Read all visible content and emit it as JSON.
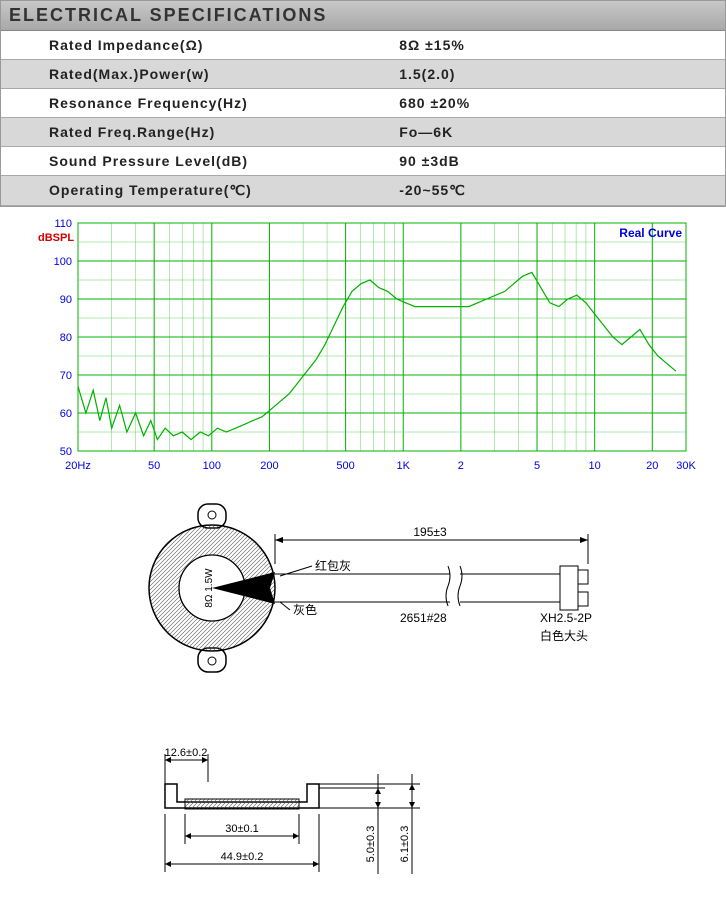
{
  "specs": {
    "header": "ELECTRICAL SPECIFICATIONS",
    "rows": [
      {
        "label": "Rated Impedance(Ω)",
        "value": "8Ω ±15%"
      },
      {
        "label": "Rated(Max.)Power(w)",
        "value": "1.5(2.0)"
      },
      {
        "label": "Resonance Frequency(Hz)",
        "value": "680 ±20%"
      },
      {
        "label": "Rated Freq.Range(Hz)",
        "value": "Fo—6K"
      },
      {
        "label": "Sound Pressure Level(dB)",
        "value": "90 ±3dB"
      },
      {
        "label": "Operating Temperature(℃)",
        "value": "-20~55℃"
      }
    ]
  },
  "chart": {
    "type": "line",
    "title_right": "Real Curve",
    "ylabel": "dBSPL",
    "ylim": [
      50,
      110
    ],
    "ytick_step": 10,
    "xticks_hz": [
      20,
      50,
      100,
      200,
      500,
      1000,
      2000,
      5000,
      10000,
      20000,
      30000
    ],
    "xtick_labels": [
      "20Hz",
      "50",
      "100",
      "200",
      "500",
      "1K",
      "2",
      "5",
      "10",
      "20",
      "30K"
    ],
    "background_color": "#ffffff",
    "grid_major_color": "#00b000",
    "grid_minor_color": "#66d066",
    "curve_color": "#00b000",
    "axis_label_color": "#0000e0",
    "title_color": "#0000e0",
    "ylabel_color": "#d00000",
    "font_size_ticks": 11,
    "font_size_title": 12,
    "curve_points": [
      [
        20,
        67
      ],
      [
        22,
        60
      ],
      [
        24,
        66
      ],
      [
        26,
        58
      ],
      [
        28,
        64
      ],
      [
        30,
        56
      ],
      [
        33,
        62
      ],
      [
        36,
        55
      ],
      [
        40,
        60
      ],
      [
        44,
        54
      ],
      [
        48,
        58
      ],
      [
        52,
        53
      ],
      [
        57,
        56
      ],
      [
        63,
        54
      ],
      [
        70,
        55
      ],
      [
        78,
        53
      ],
      [
        87,
        55
      ],
      [
        96,
        54
      ],
      [
        107,
        56
      ],
      [
        119,
        55
      ],
      [
        133,
        56
      ],
      [
        148,
        57
      ],
      [
        164,
        58
      ],
      [
        183,
        59
      ],
      [
        204,
        61
      ],
      [
        227,
        63
      ],
      [
        253,
        65
      ],
      [
        282,
        68
      ],
      [
        314,
        71
      ],
      [
        350,
        74
      ],
      [
        390,
        78
      ],
      [
        435,
        83
      ],
      [
        485,
        88
      ],
      [
        540,
        92
      ],
      [
        600,
        94
      ],
      [
        670,
        95
      ],
      [
        745,
        93
      ],
      [
        830,
        92
      ],
      [
        925,
        90
      ],
      [
        1030,
        89
      ],
      [
        1150,
        88
      ],
      [
        1280,
        88
      ],
      [
        1425,
        88
      ],
      [
        1590,
        88
      ],
      [
        1770,
        88
      ],
      [
        1975,
        88
      ],
      [
        2200,
        88
      ],
      [
        2450,
        89
      ],
      [
        2730,
        90
      ],
      [
        3040,
        91
      ],
      [
        3390,
        92
      ],
      [
        3775,
        94
      ],
      [
        4210,
        96
      ],
      [
        4700,
        97
      ],
      [
        5230,
        93
      ],
      [
        5830,
        89
      ],
      [
        6500,
        88
      ],
      [
        7240,
        90
      ],
      [
        8070,
        91
      ],
      [
        9000,
        89
      ],
      [
        10020,
        86
      ],
      [
        11170,
        83
      ],
      [
        12450,
        80
      ],
      [
        13870,
        78
      ],
      [
        15460,
        80
      ],
      [
        17230,
        82
      ],
      [
        19200,
        78
      ],
      [
        21400,
        75
      ],
      [
        23850,
        73
      ],
      [
        26580,
        71
      ]
    ]
  },
  "diagram": {
    "top": {
      "wire_length": "195±3",
      "labels": {
        "red": "红包灰",
        "grey": "灰色",
        "wire_spec": "2651#28",
        "connector": "XH2.5-2P",
        "connector_color": "白色大头"
      },
      "speaker_text": "8Ω 1.5W"
    },
    "bottom": {
      "dim_12_6": "12.6±0.2",
      "dim_30": "30±0.1",
      "dim_44_9": "44.9±0.2",
      "dim_5_0": "5.0±0.3",
      "dim_6_1": "6.1±0.3"
    }
  }
}
